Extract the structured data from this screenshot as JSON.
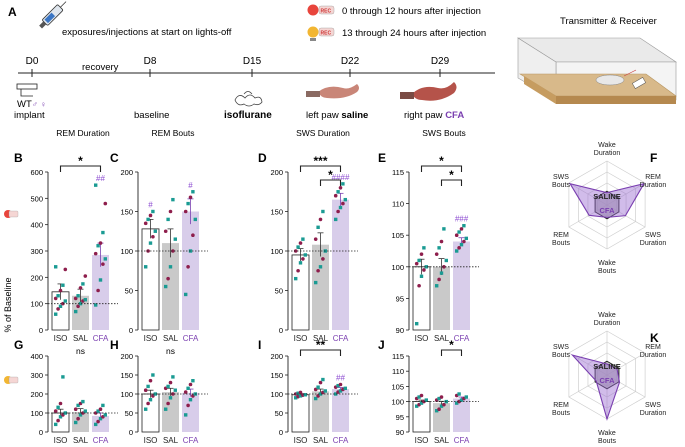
{
  "colors": {
    "iso_fill": "#ffffff",
    "sal_fill": "#c9c9c9",
    "cfa_fill": "#d8cdea",
    "cfa_accent": "#7a3fb0",
    "dot_teal": "#1a9b93",
    "dot_maroon": "#8e1e4c",
    "sig_hash": "#8c4bd1",
    "rec_red": "#e8453c",
    "rec_yellow": "#f2b632"
  },
  "panel_a": {
    "letter": "A",
    "legend_exposure": "exposures/injections at start on lights-off",
    "legend_rec1": "0 through 12 hours after injection",
    "legend_rec2": "13 through 24 hours after injection",
    "rec_badge": "REC",
    "transmitter_title": "Transmitter & Receiver",
    "recovery": "recovery",
    "days": [
      "D0",
      "D8",
      "D15",
      "D22",
      "D29"
    ],
    "events": {
      "implant": "implant",
      "wt": "WT",
      "sexes": "♂ ♀",
      "baseline": "baseline",
      "isoflurane": "isoflurane",
      "left_paw_prefix": "left paw ",
      "left_paw_bold": "saline",
      "right_paw_prefix": "right paw ",
      "right_paw_bold": "CFA"
    }
  },
  "y_axis_shared_label": "% of Baseline",
  "categories": [
    "ISO",
    "SAL",
    "CFA"
  ],
  "chart_data": [
    {
      "id": "B",
      "type": "bar",
      "title": "REM Duration",
      "categories": [
        "ISO",
        "SAL",
        "CFA"
      ],
      "values": [
        145,
        130,
        285
      ],
      "errors": [
        30,
        25,
        45
      ],
      "ylim": [
        0,
        600
      ],
      "yticks": [
        0,
        100,
        200,
        300,
        400,
        500,
        600
      ],
      "points": [
        [
          60,
          80,
          90,
          100,
          110,
          120,
          130,
          150,
          170,
          230,
          240
        ],
        [
          70,
          90,
          100,
          110,
          115,
          120,
          130,
          160,
          175,
          205
        ],
        [
          95,
          150,
          190,
          250,
          270,
          290,
          320,
          330,
          370,
          480,
          550
        ]
      ],
      "sig_bracket": {
        "from": 0,
        "to": 2,
        "label": "*"
      },
      "hash": [
        null,
        null,
        "##"
      ]
    },
    {
      "id": "C",
      "type": "bar",
      "title": "REM Bouts",
      "categories": [
        "ISO",
        "SAL",
        "CFA"
      ],
      "values": [
        128,
        110,
        150
      ],
      "errors": [
        12,
        18,
        16
      ],
      "ylim": [
        0,
        200
      ],
      "yticks": [
        0,
        50,
        100,
        150,
        200
      ],
      "points": [
        [
          80,
          100,
          110,
          118,
          125,
          135,
          140,
          145,
          150
        ],
        [
          55,
          65,
          80,
          100,
          115,
          125,
          140,
          150,
          165
        ],
        [
          45,
          80,
          100,
          120,
          140,
          150,
          160,
          168,
          175
        ]
      ],
      "sig_bracket": null,
      "hash": [
        "#",
        null,
        "#"
      ]
    },
    {
      "id": "D",
      "type": "bar",
      "title": "SWS Duration",
      "categories": [
        "ISO",
        "SAL",
        "CFA"
      ],
      "values": [
        95,
        108,
        165
      ],
      "errors": [
        8,
        15,
        8
      ],
      "ylim": [
        0,
        200
      ],
      "yticks": [
        0,
        50,
        100,
        150,
        200
      ],
      "points": [
        [
          65,
          75,
          85,
          90,
          95,
          100,
          105,
          110,
          115
        ],
        [
          60,
          75,
          80,
          90,
          100,
          115,
          130,
          140,
          150
        ],
        [
          140,
          150,
          155,
          160,
          165,
          170,
          175,
          180,
          185
        ]
      ],
      "sig_bracket": [
        {
          "from": 0,
          "to": 2,
          "label": "***"
        },
        {
          "from": 1,
          "to": 2,
          "label": "*"
        }
      ],
      "hash": [
        null,
        null,
        "####"
      ]
    },
    {
      "id": "E",
      "type": "bar",
      "title": "SWS Bouts",
      "categories": [
        "ISO",
        "SAL",
        "CFA"
      ],
      "values": [
        100,
        100,
        104
      ],
      "errors": [
        1.2,
        1.3,
        0.6
      ],
      "ylim": [
        90,
        115
      ],
      "yticks": [
        90,
        95,
        100,
        105,
        110,
        115
      ],
      "points": [
        [
          91,
          97,
          98.5,
          99.5,
          100,
          100.5,
          101,
          102,
          103
        ],
        [
          97,
          98,
          99,
          100,
          101,
          102,
          103,
          104,
          106
        ],
        [
          102.5,
          103,
          103.5,
          104,
          104.5,
          105,
          105.5,
          106,
          106.5
        ]
      ],
      "sig_bracket": [
        {
          "from": 0,
          "to": 2,
          "label": "*"
        },
        {
          "from": 1,
          "to": 2,
          "label": "*"
        }
      ],
      "hash": [
        null,
        null,
        "###"
      ]
    },
    {
      "id": "G",
      "type": "bar",
      "title": "",
      "categories": [
        "ISO",
        "SAL",
        "CFA"
      ],
      "values": [
        100,
        105,
        85
      ],
      "errors": [
        20,
        18,
        15
      ],
      "ylim": [
        0,
        400
      ],
      "yticks": [
        0,
        100,
        200,
        300,
        400
      ],
      "points": [
        [
          40,
          60,
          80,
          90,
          100,
          110,
          130,
          150,
          290
        ],
        [
          50,
          70,
          90,
          100,
          110,
          120,
          140,
          150,
          160
        ],
        [
          40,
          55,
          70,
          80,
          90,
          100,
          110,
          120,
          140
        ]
      ],
      "sig_bracket": {
        "from": 0,
        "to": 2,
        "label": "ns",
        "plain": true
      },
      "hash": [
        null,
        null,
        null
      ]
    },
    {
      "id": "H",
      "type": "bar",
      "title": "",
      "categories": [
        "ISO",
        "SAL",
        "CFA"
      ],
      "values": [
        100,
        105,
        103
      ],
      "errors": [
        10,
        10,
        10
      ],
      "ylim": [
        0,
        200
      ],
      "yticks": [
        0,
        50,
        100,
        150,
        200
      ],
      "points": [
        [
          60,
          75,
          85,
          95,
          100,
          110,
          120,
          135,
          150
        ],
        [
          60,
          75,
          90,
          100,
          110,
          115,
          120,
          130,
          145
        ],
        [
          45,
          70,
          85,
          95,
          100,
          105,
          115,
          125,
          135
        ]
      ],
      "sig_bracket": {
        "from": 0,
        "to": 2,
        "label": "ns",
        "plain": true
      },
      "hash": [
        null,
        null,
        null
      ]
    },
    {
      "id": "I",
      "type": "bar",
      "title": "",
      "categories": [
        "ISO",
        "SAL",
        "CFA"
      ],
      "values": [
        98,
        107,
        113
      ],
      "errors": [
        3,
        6,
        4
      ],
      "ylim": [
        0,
        200
      ],
      "yticks": [
        0,
        50,
        100,
        150,
        200
      ],
      "points": [
        [
          90,
          93,
          95,
          97,
          98,
          100,
          102,
          104
        ],
        [
          88,
          95,
          100,
          104,
          108,
          112,
          118,
          130,
          138
        ],
        [
          100,
          105,
          108,
          112,
          115,
          118,
          122,
          125
        ]
      ],
      "sig_bracket": {
        "from": 0,
        "to": 2,
        "label": "**"
      },
      "hash": [
        null,
        null,
        "##"
      ]
    },
    {
      "id": "J",
      "type": "bar",
      "title": "",
      "categories": [
        "ISO",
        "SAL",
        "CFA"
      ],
      "values": [
        100,
        99.5,
        101
      ],
      "errors": [
        0.5,
        0.6,
        0.5
      ],
      "ylim": [
        90,
        115
      ],
      "yticks": [
        90,
        95,
        100,
        105,
        110,
        115
      ],
      "points": [
        [
          98.5,
          99,
          99.5,
          100,
          100.5,
          101,
          101.5,
          102
        ],
        [
          97,
          97.5,
          98.5,
          99,
          100,
          100.5,
          101,
          101.5
        ],
        [
          99.5,
          100,
          100.5,
          101,
          101.5,
          102,
          102.5
        ]
      ],
      "sig_bracket": {
        "from": 1,
        "to": 2,
        "label": "*"
      },
      "hash": [
        null,
        null,
        null
      ]
    }
  ],
  "radar": [
    {
      "id": "F",
      "axes": [
        "Wake\nDuration",
        "REM\nDuration",
        "SWS\nDuration",
        "Wake\nBouts",
        "REM\nBouts",
        "SWS\nBouts"
      ],
      "saline": [
        1,
        1,
        1,
        1,
        1,
        1
      ],
      "cfa": [
        0.9,
        3.1,
        1.55,
        0.9,
        1.5,
        3.1
      ],
      "max": 3.2,
      "rings": 4,
      "saline_label": "SALINE",
      "cfa_label": "CFA"
    },
    {
      "id": "K",
      "axes": [
        "Wake\nDuration",
        "REM\nDuration",
        "SWS\nDuration",
        "Wake\nBouts",
        "REM\nBouts",
        "SWS\nBouts"
      ],
      "saline": [
        1,
        1,
        1,
        1,
        1,
        1
      ],
      "cfa": [
        0.8,
        0.85,
        1.05,
        3.2,
        0.9,
        2.9
      ],
      "max": 3.2,
      "rings": 4,
      "saline_label": "SALINE",
      "cfa_label": "CFA"
    }
  ]
}
